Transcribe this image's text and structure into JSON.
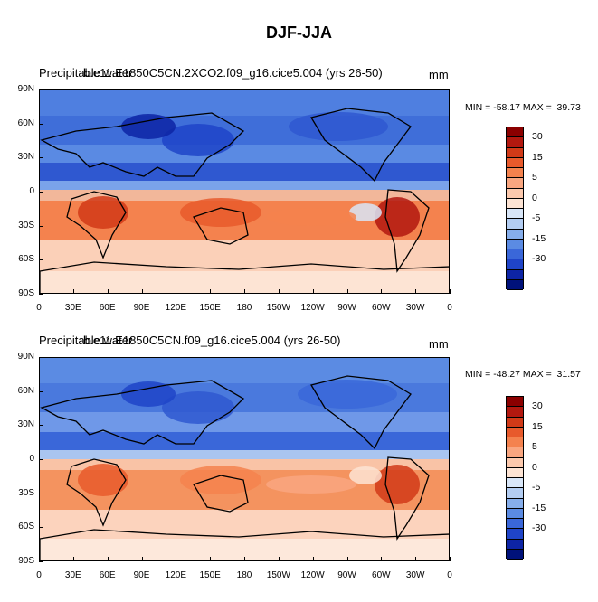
{
  "title": "DJF-JJA",
  "panels": [
    {
      "left_string_a": "Precipitable water",
      "left_string_b": "b.e11.E1850C5CN.2XCO2.f09_g16.cice5.004 (yrs 26-50)",
      "units": "mm",
      "stats": "MIN = -58.17 MAX =  39.73"
    },
    {
      "left_string_a": "Precipitable water",
      "left_string_b": "b.e11.E1850C5CN.f09_g16.cice5.004 (yrs 26-50)",
      "units": "mm",
      "stats": "MIN = -48.27 MAX =  31.57"
    }
  ],
  "lat_labels": [
    "90N",
    "60N",
    "30N",
    "0",
    "30S",
    "60S",
    "90S"
  ],
  "lon_labels": [
    "0",
    "30E",
    "60E",
    "90E",
    "120E",
    "150E",
    "180",
    "150W",
    "120W",
    "90W",
    "60W",
    "30W",
    "0"
  ],
  "colorbar": {
    "labels": [
      "30",
      "15",
      "5",
      "0",
      "-5",
      "-15",
      "-30"
    ],
    "colors": [
      "#8b0000",
      "#b2180f",
      "#d13a18",
      "#e85a2c",
      "#f4824e",
      "#f9a680",
      "#fcc9ad",
      "#fde4d4",
      "#d8e6f8",
      "#b3cdf2",
      "#86aeeb",
      "#5b8be3",
      "#3a67d9",
      "#1f44c8",
      "#0d24a5",
      "#00127a"
    ]
  }
}
